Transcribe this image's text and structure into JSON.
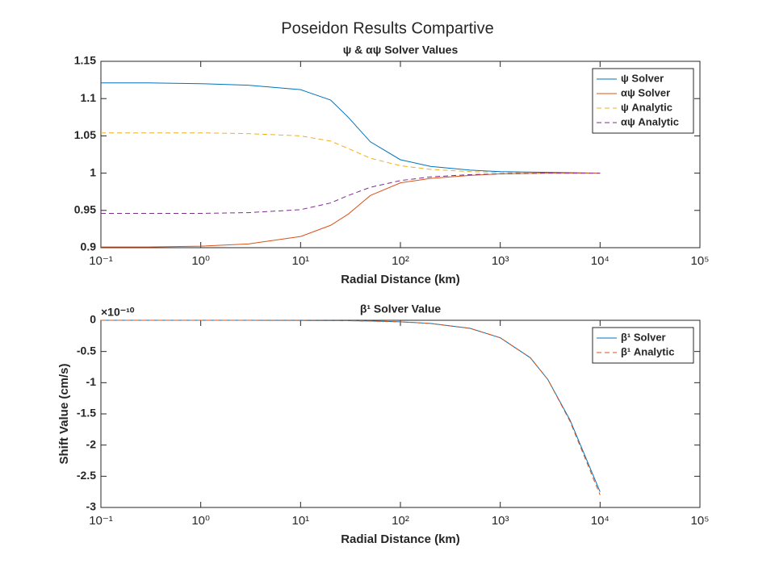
{
  "title": "Poseidon Results Compartive",
  "chart_data": [
    {
      "type": "line",
      "title": "ψ & αψ Solver Values",
      "xlabel": "Radial Distance (km)",
      "xscale": "log",
      "x": [
        0.1,
        0.3,
        1,
        3,
        10,
        20,
        30,
        50,
        100,
        200,
        500,
        1000,
        3000,
        10000
      ],
      "series": [
        {
          "name": "ψ Solver",
          "color": "#0072BD",
          "linestyle": "solid",
          "values": [
            1.121,
            1.121,
            1.12,
            1.118,
            1.112,
            1.098,
            1.075,
            1.042,
            1.018,
            1.009,
            1.004,
            1.002,
            1.001,
            1.0
          ]
        },
        {
          "name": "αψ Solver",
          "color": "#D95319",
          "linestyle": "solid",
          "values": [
            0.901,
            0.901,
            0.902,
            0.905,
            0.915,
            0.93,
            0.945,
            0.97,
            0.987,
            0.993,
            0.997,
            0.999,
            1.0,
            1.0
          ]
        },
        {
          "name": "ψ Analytic",
          "color": "#EDB120",
          "linestyle": "dashed",
          "values": [
            1.054,
            1.054,
            1.054,
            1.053,
            1.05,
            1.043,
            1.033,
            1.02,
            1.01,
            1.005,
            1.002,
            1.001,
            1.0,
            1.0
          ]
        },
        {
          "name": "αψ Analytic",
          "color": "#7E2F8E",
          "linestyle": "dashed",
          "values": [
            0.946,
            0.946,
            0.946,
            0.947,
            0.951,
            0.96,
            0.97,
            0.981,
            0.99,
            0.995,
            0.998,
            0.999,
            1.0,
            1.0
          ]
        }
      ],
      "xlim": [
        0.1,
        100000
      ],
      "xticks": [
        {
          "value": 0.1,
          "label": "10⁻¹"
        },
        {
          "value": 1,
          "label": "10⁰"
        },
        {
          "value": 10,
          "label": "10¹"
        },
        {
          "value": 100,
          "label": "10²"
        },
        {
          "value": 1000,
          "label": "10³"
        },
        {
          "value": 10000,
          "label": "10⁴"
        },
        {
          "value": 100000,
          "label": "10⁵"
        }
      ],
      "ylim": [
        0.9,
        1.15
      ],
      "yticks": [
        0.9,
        0.95,
        1,
        1.05,
        1.1,
        1.15
      ],
      "legend": "northeast"
    },
    {
      "type": "line",
      "title": "β¹ Solver Value",
      "xlabel": "Radial Distance (km)",
      "ylabel": "Shift Value (cm/s)",
      "y_multiplier": "×10⁻¹⁰",
      "xscale": "log",
      "x": [
        0.1,
        0.3,
        1,
        3,
        10,
        20,
        30,
        50,
        100,
        200,
        500,
        1000,
        2000,
        3000,
        5000,
        10000
      ],
      "series": [
        {
          "name": "β¹ Solver",
          "color": "#0072BD",
          "linestyle": "solid",
          "values": [
            0,
            0,
            0,
            -0.0005,
            -0.002,
            -0.005,
            -0.007,
            -0.012,
            -0.025,
            -0.05,
            -0.13,
            -0.28,
            -0.6,
            -0.95,
            -1.6,
            -2.75
          ]
        },
        {
          "name": "β¹ Analytic",
          "color": "#D95319",
          "linestyle": "dashed",
          "values": [
            0,
            0,
            0,
            -0.0005,
            -0.002,
            -0.005,
            -0.007,
            -0.012,
            -0.025,
            -0.05,
            -0.13,
            -0.28,
            -0.6,
            -0.95,
            -1.62,
            -2.8
          ]
        }
      ],
      "xlim": [
        0.1,
        100000
      ],
      "xticks": [
        {
          "value": 0.1,
          "label": "10⁻¹"
        },
        {
          "value": 1,
          "label": "10⁰"
        },
        {
          "value": 10,
          "label": "10¹"
        },
        {
          "value": 100,
          "label": "10²"
        },
        {
          "value": 1000,
          "label": "10³"
        },
        {
          "value": 10000,
          "label": "10⁴"
        },
        {
          "value": 100000,
          "label": "10⁵"
        }
      ],
      "ylim": [
        -3,
        0
      ],
      "yticks": [
        -3,
        -2.5,
        -2,
        -1.5,
        -1,
        -0.5,
        0
      ],
      "legend": "northeast"
    }
  ]
}
